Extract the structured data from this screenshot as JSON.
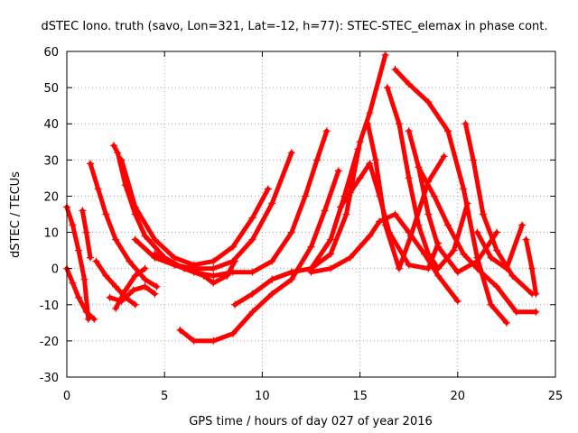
{
  "chart_data": {
    "type": "scatter",
    "title": "dSTEC Iono. truth (savo, Lon=321, Lat=-12, h=77): STEC-STEC_elemax in phase cont.",
    "xlabel": "GPS time / hours of day 027 of year 2016",
    "ylabel": "dSTEC  / TECUs",
    "xlim": [
      0,
      25
    ],
    "ylim": [
      -30,
      60
    ],
    "x_ticks": [
      "0",
      "5",
      "10",
      "15",
      "20",
      "25"
    ],
    "y_ticks": [
      "-30",
      "-20",
      "-10",
      "0",
      "10",
      "20",
      "30",
      "40",
      "50",
      "60"
    ],
    "grid": true,
    "marker": "+",
    "color": "#ff0000",
    "series": [
      {
        "x": [
          0.0,
          0.3,
          0.6,
          0.9,
          1.1
        ],
        "y": [
          17,
          12,
          5,
          -3,
          -14
        ]
      },
      {
        "x": [
          0.0,
          0.3,
          0.6,
          1.0,
          1.4
        ],
        "y": [
          0,
          -4,
          -8,
          -12,
          -14
        ]
      },
      {
        "x": [
          0.8,
          1.0,
          1.2
        ],
        "y": [
          16,
          10,
          3
        ]
      },
      {
        "x": [
          1.2,
          1.6,
          2.0,
          2.5,
          3.2,
          4.0,
          4.6
        ],
        "y": [
          29,
          22,
          15,
          8,
          2,
          -3,
          -5
        ]
      },
      {
        "x": [
          1.5,
          2.0,
          2.5,
          3.0,
          3.5
        ],
        "y": [
          2,
          -2,
          -5,
          -8,
          -10
        ]
      },
      {
        "x": [
          2.2,
          2.8,
          3.4,
          4.0,
          4.5
        ],
        "y": [
          -8,
          -9,
          -6,
          -5,
          -7
        ]
      },
      {
        "x": [
          2.5,
          3.0,
          3.5,
          4.0
        ],
        "y": [
          -11,
          -6,
          -2,
          0
        ]
      },
      {
        "x": [
          2.4,
          2.6,
          3.0,
          3.5,
          4.0,
          5.0,
          6.0,
          7.0,
          7.5,
          8.2,
          8.6
        ],
        "y": [
          34,
          32,
          23,
          15,
          9,
          3,
          0,
          -2,
          -4,
          -2,
          2
        ]
      },
      {
        "x": [
          2.8,
          3.5,
          4.5,
          5.5,
          6.5,
          7.5,
          8.5,
          9.5,
          10.3
        ],
        "y": [
          30,
          17,
          8,
          3,
          1,
          2,
          6,
          14,
          22
        ]
      },
      {
        "x": [
          3.5,
          4.5,
          5.5,
          6.5,
          7.5,
          8.5,
          9.5,
          10.5,
          11.5
        ],
        "y": [
          8,
          3,
          1,
          0,
          0,
          2,
          8,
          18,
          32
        ]
      },
      {
        "x": [
          4.5,
          5.5,
          6.5,
          7.5,
          8.5,
          9.5,
          10.5,
          11.5,
          12.2,
          12.8,
          13.3
        ],
        "y": [
          4,
          1,
          -1,
          -2,
          -1,
          -1,
          2,
          10,
          20,
          30,
          38
        ]
      },
      {
        "x": [
          5.8,
          6.5,
          7.5,
          8.5,
          9.5,
          10.5,
          11.5,
          12.5,
          13.2,
          13.9
        ],
        "y": [
          -17,
          -20,
          -20,
          -18,
          -12,
          -7,
          -3,
          6,
          16,
          27
        ]
      },
      {
        "x": [
          8.6,
          9.5,
          10.5,
          11.5,
          12.5,
          13.5,
          14.2,
          14.9
        ],
        "y": [
          -10,
          -7,
          -3,
          -1,
          0,
          8,
          20,
          33
        ]
      },
      {
        "x": [
          10.5,
          11.5,
          12.5,
          13.5,
          14.3,
          15.0,
          15.5,
          16.3
        ],
        "y": [
          -3,
          -1,
          0,
          4,
          15,
          35,
          43,
          59
        ]
      },
      {
        "x": [
          12.5,
          13.5,
          14.5,
          15.5,
          16.0,
          16.8,
          17.5,
          18.3,
          19.0,
          20.0
        ],
        "y": [
          -1,
          0,
          3,
          9,
          13,
          15,
          10,
          4,
          -2,
          -9
        ]
      },
      {
        "x": [
          14.0,
          14.5,
          15.0,
          15.5,
          16.0,
          16.5,
          17.5,
          18.5,
          19.0
        ],
        "y": [
          17,
          21,
          25,
          29,
          20,
          10,
          1,
          0,
          7
        ]
      },
      {
        "x": [
          15.4,
          15.8,
          16.3,
          17.0,
          17.6,
          18.5,
          19.3
        ],
        "y": [
          40,
          30,
          12,
          0,
          9,
          24,
          31
        ]
      },
      {
        "x": [
          16.4,
          17.0,
          17.5,
          18.0,
          18.5,
          19.0,
          19.8,
          20.5
        ],
        "y": [
          50,
          40,
          25,
          12,
          4,
          0,
          5,
          18
        ]
      },
      {
        "x": [
          16.8,
          17.5,
          18.5,
          19.5,
          20.3,
          21.0,
          21.7,
          22.5
        ],
        "y": [
          55,
          51,
          46,
          38,
          22,
          3,
          -10,
          -15
        ]
      },
      {
        "x": [
          17.5,
          18.0,
          18.5,
          19.0,
          20.0,
          21.0,
          22.0
        ],
        "y": [
          38,
          28,
          15,
          6,
          -1,
          2,
          10
        ]
      },
      {
        "x": [
          18.0,
          18.8,
          19.5,
          20.3,
          21.0,
          22.0,
          23.0,
          24.0
        ],
        "y": [
          28,
          20,
          12,
          4,
          0,
          -5,
          -12,
          -12
        ]
      },
      {
        "x": [
          20.4,
          20.8,
          21.3,
          22.0,
          22.8,
          23.8
        ],
        "y": [
          40,
          30,
          15,
          5,
          -2,
          -7
        ]
      },
      {
        "x": [
          21.0,
          21.7,
          22.5,
          23.3
        ],
        "y": [
          10,
          3,
          0,
          12
        ]
      },
      {
        "x": [
          23.5,
          23.8,
          24.0
        ],
        "y": [
          8,
          0,
          -7
        ]
      }
    ]
  }
}
